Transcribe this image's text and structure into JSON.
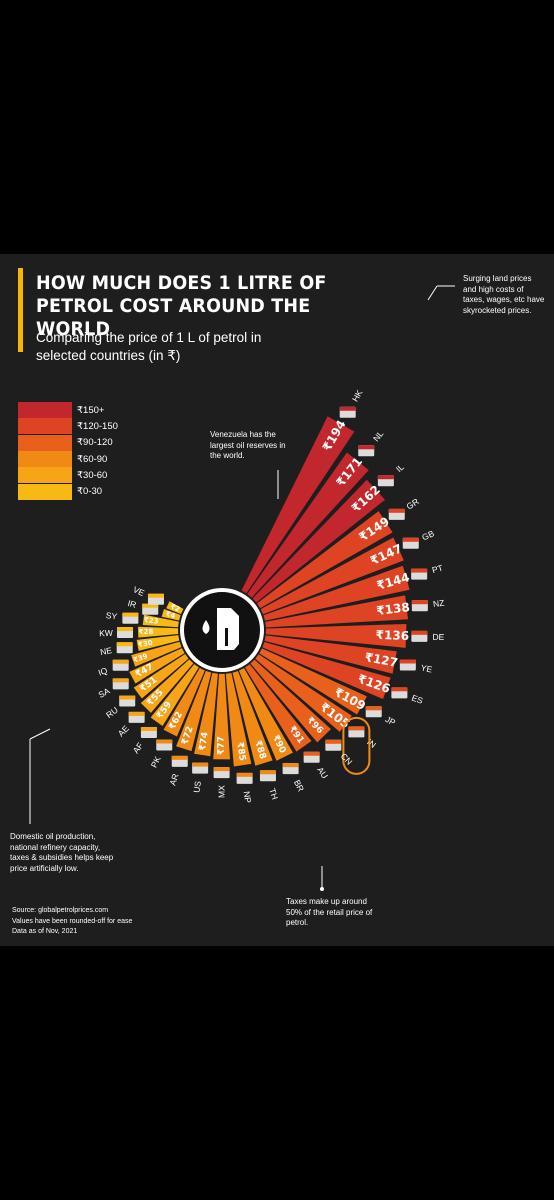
{
  "title": "HOW MUCH DOES 1 LITRE OF PETROL COST AROUND THE WORLD",
  "subtitle": "Comparing the price of 1 L of petrol in selected countries (in ₹)",
  "legend": [
    {
      "label": "₹150+",
      "color": "#c1272d"
    },
    {
      "label": "₹120-150",
      "color": "#de4424"
    },
    {
      "label": "₹90-120",
      "color": "#e8601c"
    },
    {
      "label": "₹60-90",
      "color": "#f18a15"
    },
    {
      "label": "₹30-60",
      "color": "#f7a517"
    },
    {
      "label": "₹0-30",
      "color": "#f9b915"
    }
  ],
  "notes": {
    "hk": "Surging land prices and high costs of taxes, wages, etc have skyrocketed prices.",
    "ve": "Venezuela has the largest oil reserves in the world.",
    "us": "Domestic oil production, national refinery capacity, taxes & subsidies helps keep price artificially low.",
    "in": "Taxes make up around 50% of the retail price of petrol."
  },
  "source": {
    "line1": "Source: globalpetrolprices.com",
    "line2": "Values have been rounded-off for ease",
    "line3": "Data as of Nov, 2021"
  },
  "icon": "fuel-nozzle-icon",
  "chart_data": {
    "type": "bar",
    "layout": "radial",
    "categories": [
      "HK",
      "NL",
      "IL",
      "GR",
      "GB",
      "PT",
      "NZ",
      "DE",
      "YE",
      "ES",
      "JP",
      "IN",
      "CN",
      "AU",
      "BR",
      "TH",
      "NP",
      "MX",
      "US",
      "AR",
      "PK",
      "AF",
      "AE",
      "RU",
      "SA",
      "IQ",
      "NE",
      "KW",
      "SY",
      "IR",
      "VE"
    ],
    "labels": [
      "₹194",
      "₹171",
      "₹162",
      "₹149",
      "₹147",
      "₹144",
      "₹138",
      "₹136",
      "₹127",
      "₹126",
      "₹109",
      "₹105",
      "₹96",
      "₹91",
      "₹90",
      "₹88",
      "₹85",
      "₹77",
      "₹74",
      "₹72",
      "₹62",
      "₹59",
      "₹55",
      "₹51",
      "₹47",
      "₹39",
      "₹30",
      "₹28",
      "₹23",
      "₹4",
      "₹2"
    ],
    "values": [
      194,
      171,
      162,
      149,
      147,
      144,
      138,
      136,
      127,
      126,
      109,
      105,
      96,
      91,
      90,
      88,
      85,
      77,
      74,
      72,
      62,
      59,
      55,
      51,
      47,
      39,
      30,
      28,
      23,
      4,
      2
    ],
    "colors": [
      "#c1272d",
      "#c1272d",
      "#c1272d",
      "#de4424",
      "#de4424",
      "#de4424",
      "#de4424",
      "#de4424",
      "#de4424",
      "#de4424",
      "#e8601c",
      "#e8601c",
      "#e8601c",
      "#e8601c",
      "#f18a15",
      "#f18a15",
      "#f18a15",
      "#f18a15",
      "#f18a15",
      "#f18a15",
      "#f18a15",
      "#f7a517",
      "#f7a517",
      "#f7a517",
      "#f7a517",
      "#f7a517",
      "#f9b915",
      "#f9b915",
      "#f9b915",
      "#f9b915",
      "#f9b915"
    ],
    "highlight": "IN"
  }
}
